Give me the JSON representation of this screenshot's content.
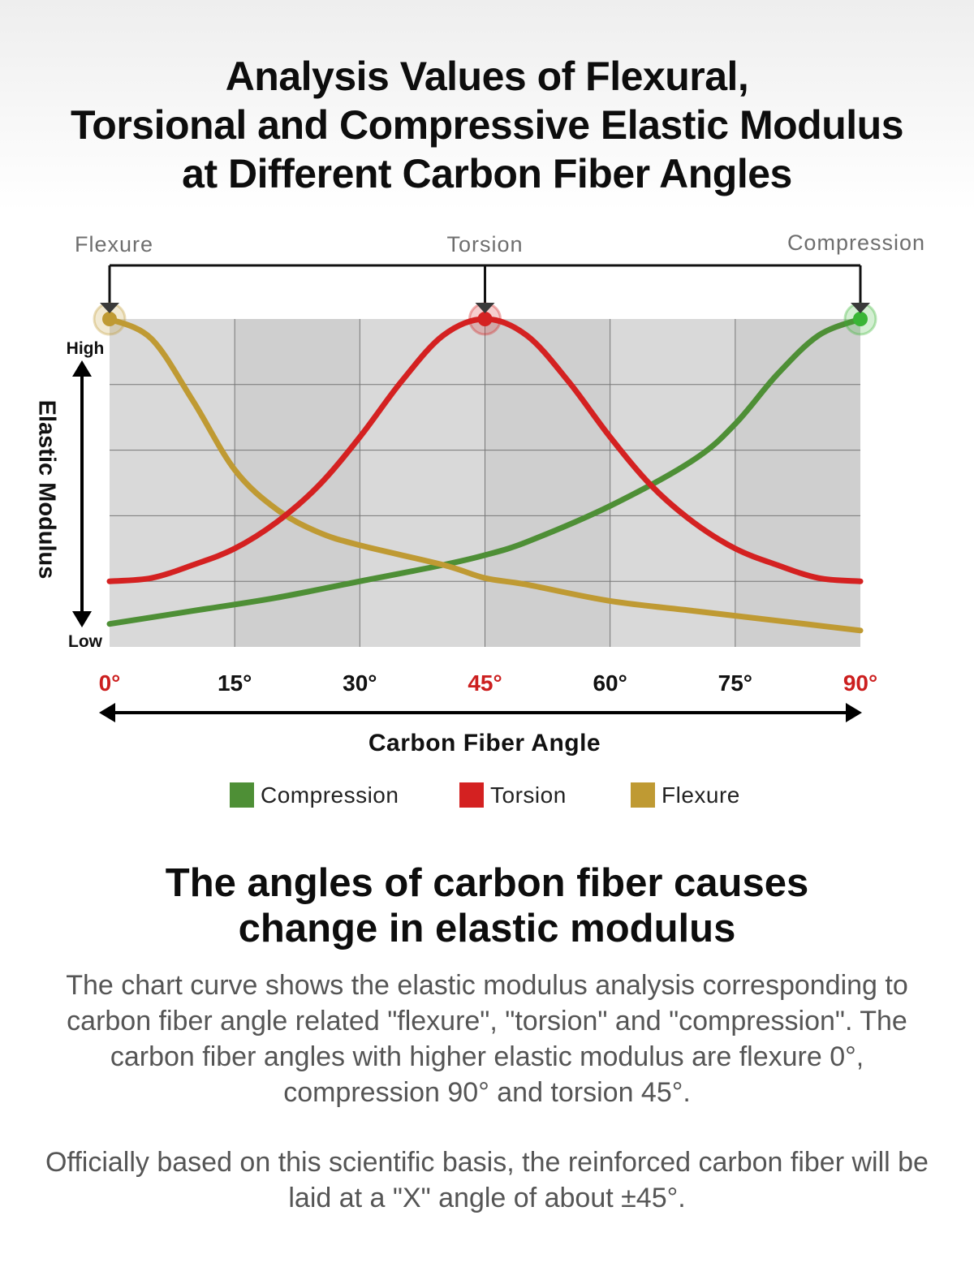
{
  "header": {
    "title_lines": [
      "Analysis Values of Flexural,",
      "Torsional and Compressive Elastic Modulus",
      "at Different Carbon Fiber Angles"
    ]
  },
  "chart_data": {
    "type": "line",
    "title": "",
    "xlabel": "Carbon Fiber Angle",
    "ylabel": "Elastic Modulus",
    "ylabel_high": "High",
    "ylabel_low": "Low",
    "x_ticks": [
      "0°",
      "15°",
      "30°",
      "45°",
      "60°",
      "75°",
      "90°"
    ],
    "highlight_ticks": [
      "0°",
      "45°",
      "90°"
    ],
    "xlim": [
      0,
      90
    ],
    "ylim": [
      0,
      100
    ],
    "grid": true,
    "y_scale": "relative (no numeric ticks)",
    "series": [
      {
        "name": "Compression",
        "color": "#4e8f36",
        "x": [
          0,
          10,
          20,
          30,
          40,
          45,
          50,
          60,
          70,
          75,
          80,
          85,
          90
        ],
        "y": [
          7,
          11,
          15,
          20,
          25,
          28,
          32,
          43,
          57,
          68,
          83,
          95,
          100
        ]
      },
      {
        "name": "Torsion",
        "color": "#d42121",
        "x": [
          0,
          5,
          10,
          15,
          20,
          25,
          30,
          35,
          40,
          45,
          50,
          55,
          60,
          65,
          70,
          75,
          80,
          85,
          90
        ],
        "y": [
          20,
          21,
          25,
          30,
          38,
          49,
          64,
          81,
          95,
          100,
          95,
          81,
          64,
          49,
          38,
          30,
          25,
          21,
          20
        ]
      },
      {
        "name": "Flexure",
        "color": "#bf9a33",
        "x": [
          0,
          5,
          10,
          15,
          20,
          25,
          30,
          40,
          45,
          50,
          60,
          70,
          80,
          90
        ],
        "y": [
          100,
          94,
          75,
          54,
          42,
          35,
          31,
          25,
          21,
          19,
          14,
          11,
          8,
          5
        ]
      }
    ],
    "callouts": [
      {
        "label": "Flexure",
        "x": 0,
        "series": "Flexure",
        "color": "#bf9a33"
      },
      {
        "label": "Torsion",
        "x": 45,
        "series": "Torsion",
        "color": "#d42121"
      },
      {
        "label": "Compression",
        "x": 90,
        "series": "Compression",
        "color": "#39b535"
      }
    ],
    "legend": {
      "placement": "bottom",
      "items": [
        {
          "label": "Compression",
          "color": "#4e8f36"
        },
        {
          "label": "Torsion",
          "color": "#d42121"
        },
        {
          "label": "Flexure",
          "color": "#bf9a33"
        }
      ]
    }
  },
  "colors": {
    "plot_background": "#d9d9d9",
    "plot_background_dark": "#cfcfcf",
    "grid": "#777777",
    "highlight_tick": "#cc1f1f",
    "text": "#111111"
  },
  "subheading": {
    "lines": [
      "The angles of carbon fiber causes",
      "change in elastic modulus"
    ]
  },
  "paragraphs": [
    "The chart curve shows the elastic modulus analysis corresponding to carbon fiber angle related \"flexure\", \"torsion\" and \"compression\". The carbon fiber angles with higher elastic modulus are flexure 0°, compression 90° and torsion 45°.",
    "Officially based on this scientific basis, the reinforced carbon fiber will be laid at a \"X\" angle of about ±45°."
  ]
}
